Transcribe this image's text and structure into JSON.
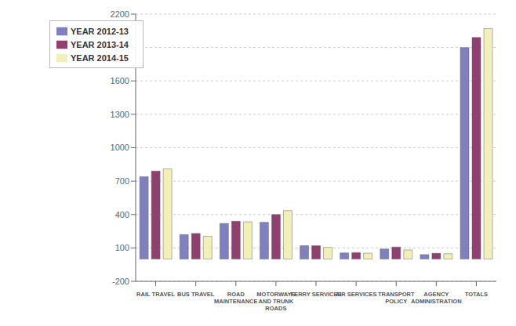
{
  "chart_data": {
    "type": "bar",
    "categories": [
      "RAIL TRAVEL",
      "BUS TRAVEL",
      "ROAD\nMAINTENANCE",
      "MOTORWAYS\nAND TRUNK\nROADS",
      "FERRY SERVICES",
      "AIR SERVICES",
      "TRANSPORT\nPOLICY",
      "AGENCY\nADMINISTRATION",
      "TOTALS"
    ],
    "series": [
      {
        "name": "YEAR 2012-13",
        "color": "#8080C0",
        "values": [
          740,
          220,
          320,
          330,
          120,
          55,
          90,
          40,
          1900
        ]
      },
      {
        "name": "YEAR 2013-14",
        "color": "#904070",
        "values": [
          790,
          230,
          340,
          400,
          120,
          58,
          108,
          52,
          1990
        ]
      },
      {
        "name": "YEAR 2014-15",
        "color": "#F0F0B8",
        "values": [
          810,
          205,
          335,
          435,
          105,
          53,
          82,
          48,
          2070
        ]
      }
    ],
    "ylim": [
      -200,
      2200
    ],
    "yticks": [
      -200,
      100,
      400,
      700,
      1000,
      1300,
      1600,
      1900,
      2200
    ],
    "grid": true,
    "legend": "upper left"
  }
}
